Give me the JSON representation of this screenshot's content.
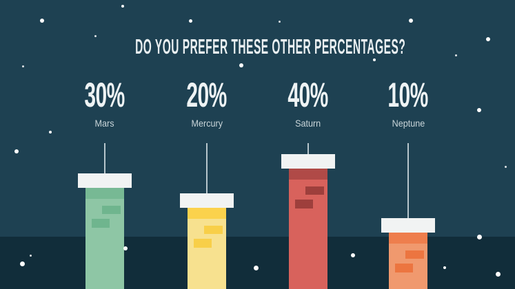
{
  "slide": {
    "title": "DO YOU PREFER THESE OTHER PERCENTAGES?",
    "theme": {
      "sky_color": "#1e4152",
      "ground_color": "#112d3a",
      "star_color": "#ffffff",
      "text_color": "#eef3f4",
      "secondary_text_color": "#c9d5d9",
      "cap_color": "#f1f3f3",
      "hanger_line_color": "#b7c6cc"
    }
  },
  "chart_data": {
    "type": "bar",
    "title": "DO YOU PREFER THESE OTHER PERCENTAGES?",
    "categories": [
      "Mars",
      "Mercury",
      "Saturn",
      "Neptune"
    ],
    "values": [
      30,
      20,
      40,
      10
    ],
    "value_labels": [
      "30%",
      "20%",
      "40%",
      "10%"
    ],
    "unit": "percent",
    "orientation": "vertical",
    "legend": "none",
    "xlabel": "",
    "ylabel": "",
    "bar_colors": [
      "#8ec6a5",
      "#f7e18f",
      "#d8625c",
      "#f0996e"
    ],
    "bar_band_colors": [
      "#77b994",
      "#fbd24c",
      "#b04a47",
      "#ee7e4d"
    ],
    "bar_brick_colors": [
      "#6fb58e",
      "#f8cf49",
      "#9e3f3c",
      "#ec7540"
    ]
  }
}
